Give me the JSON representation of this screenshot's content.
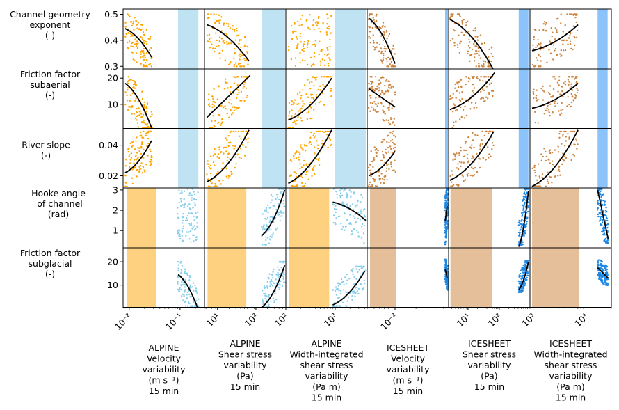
{
  "chart_data": {
    "type": "scatter",
    "layout": "grid",
    "grid": {
      "rows": 5,
      "cols": 6,
      "sharex": "column",
      "sharey": "row"
    },
    "colors": {
      "alpine_points": "#ffa500",
      "alpine_glacial_points": "#87ceeb",
      "icesheet_points": "#cd853f",
      "icesheet_glacial_points": "#1e88e5",
      "alpine_band": "#fdd17f",
      "alpine_band_blue": "#bfe3f2",
      "icesheet_band": "#e4bf99",
      "icesheet_band_blue": "#8cc3fb",
      "fit_line": "#000000"
    },
    "rows": [
      {
        "label": [
          "Channel geometry",
          "exponent",
          "(-)"
        ],
        "ylim": [
          0.29,
          0.52
        ],
        "yticks": [
          0.3,
          0.4,
          0.5
        ],
        "ytick_labels": [
          "0.3",
          "0.4",
          "0.5"
        ]
      },
      {
        "label": [
          "Friction factor",
          "subaerial",
          "(-)"
        ],
        "ylim": [
          0.8,
          23.5
        ],
        "yticks": [
          10,
          20
        ],
        "ytick_labels": [
          "10",
          "20"
        ]
      },
      {
        "label": [
          "River slope",
          "(-)"
        ],
        "ylim": [
          0.012,
          0.051
        ],
        "yticks": [
          0.02,
          0.04
        ],
        "ytick_labels": [
          "0.02",
          "0.04"
        ]
      },
      {
        "label": [
          "Hooke angle",
          " of channel",
          "(rad)"
        ],
        "ylim": [
          0.15,
          3.1
        ],
        "yticks": [
          1,
          2,
          3
        ],
        "ytick_labels": [
          "1",
          "2",
          "3"
        ]
      },
      {
        "label": [
          "Friction factor",
          "subglacial",
          "(-)"
        ],
        "ylim": [
          0.5,
          26
        ],
        "yticks": [
          10,
          20
        ],
        "ytick_labels": [
          "10",
          "20"
        ]
      }
    ],
    "columns": [
      {
        "label": [
          "ALPINE",
          "Velocity",
          "variability",
          "(m s⁻¹)",
          "15 min"
        ],
        "xscale": "log",
        "xlim_log10": [
          -2.12,
          -0.52
        ],
        "xticks_log10": [
          -2,
          -1
        ],
        "xtick_labels": [
          "10⁻²",
          "10⁻¹"
        ],
        "group": "alpine",
        "subaerial_band_log10": [
          -1.04,
          -0.64
        ],
        "glacial_band_log10": [
          -2.05,
          -1.47
        ]
      },
      {
        "label": [
          "ALPINE",
          "Shear stress",
          "variability",
          "(Pa)",
          "15 min"
        ],
        "xscale": "log",
        "xlim_log10": [
          0.66,
          2.78
        ],
        "xticks_log10": [
          1,
          2
        ],
        "xtick_labels": [
          "10¹",
          "10²"
        ],
        "group": "alpine",
        "subaerial_band_log10": [
          2.16,
          2.76
        ],
        "glacial_band_log10": [
          0.74,
          1.75
        ]
      },
      {
        "label": [
          "ALPINE",
          "Width-integrated",
          "shear stress",
          "variability",
          "(Pa m)",
          "15 min"
        ],
        "xscale": "log",
        "xlim_log10": [
          2.0,
          3.65
        ],
        "xticks_log10": [
          2,
          3
        ],
        "xtick_labels": [
          "10²",
          "10³"
        ],
        "group": "alpine",
        "subaerial_band_log10": [
          3.0,
          3.62
        ],
        "glacial_band_log10": [
          2.06,
          2.88
        ]
      },
      {
        "label": [
          "ICESHEET",
          "Velocity",
          "variability",
          "(m s⁻¹)",
          "15 min"
        ],
        "xscale": "log",
        "xlim_log10": [
          -2.4,
          -1.23
        ],
        "xticks_log10": [
          -2
        ],
        "xtick_labels": [
          "10⁻²"
        ],
        "group": "icesheet",
        "subaerial_band_log10": [
          -1.28,
          -1.24
        ],
        "glacial_band_log10": [
          -2.36,
          -1.99
        ]
      },
      {
        "label": [
          "ICESHEET",
          "Shear stress",
          "variability",
          "(Pa)",
          "15 min"
        ],
        "xscale": "log",
        "xlim_log10": [
          0.38,
          2.98
        ],
        "xticks_log10": [
          1,
          2
        ],
        "xtick_labels": [
          "10¹",
          "10²"
        ],
        "group": "icesheet",
        "subaerial_band_log10": [
          2.62,
          2.93
        ],
        "glacial_band_log10": [
          0.44,
          1.76
        ]
      },
      {
        "label": [
          "ICESHEET",
          "Width-integrated",
          "shear stress",
          "variability",
          "(Pa m)",
          "15 min"
        ],
        "xscale": "log",
        "xlim_log10": [
          2.94,
          4.48
        ],
        "xticks_log10": [
          3,
          4
        ],
        "xtick_labels": [
          "10³",
          "10⁴"
        ],
        "group": "icesheet",
        "subaerial_band_log10": [
          4.22,
          4.41
        ],
        "glacial_band_log10": [
          2.98,
          3.87
        ]
      }
    ],
    "panels": [
      {
        "row": 0,
        "col": 0,
        "kind": "subaerial",
        "cloud": {
          "x_log10": [
            -2.08,
            -1.55
          ],
          "y": [
            0.3,
            0.5
          ],
          "n": 110
        },
        "fit": {
          "x_log10": [
            -2.08,
            -1.56
          ],
          "y": [
            0.445,
            0.335
          ],
          "curve": "concave"
        }
      },
      {
        "row": 0,
        "col": 1,
        "kind": "subaerial",
        "cloud": {
          "x_log10": [
            0.72,
            1.8
          ],
          "y": [
            0.3,
            0.5
          ],
          "n": 110
        },
        "fit": {
          "x_log10": [
            0.72,
            1.82
          ],
          "y": [
            0.46,
            0.32
          ],
          "curve": "concave"
        }
      },
      {
        "row": 0,
        "col": 2,
        "kind": "subaerial",
        "cloud": {
          "x_log10": [
            2.05,
            2.93
          ],
          "y": [
            0.3,
            0.5
          ],
          "n": 110
        },
        "fit": null
      },
      {
        "row": 0,
        "col": 3,
        "kind": "subaerial",
        "cloud": {
          "x_log10": [
            -2.38,
            -1.99
          ],
          "y": [
            0.3,
            0.5
          ],
          "n": 110
        },
        "fit": {
          "x_log10": [
            -2.38,
            -2.0
          ],
          "y": [
            0.485,
            0.31
          ],
          "curve": "concave"
        }
      },
      {
        "row": 0,
        "col": 4,
        "kind": "subaerial",
        "cloud": {
          "x_log10": [
            0.42,
            1.8
          ],
          "y": [
            0.3,
            0.5
          ],
          "n": 110
        },
        "fit": {
          "x_log10": [
            0.42,
            1.8
          ],
          "y": [
            0.48,
            0.29
          ],
          "curve": "concave"
        }
      },
      {
        "row": 0,
        "col": 5,
        "kind": "subaerial",
        "cloud": {
          "x_log10": [
            2.98,
            3.85
          ],
          "y": [
            0.3,
            0.5
          ],
          "n": 110
        },
        "fit": {
          "x_log10": [
            2.98,
            3.85
          ],
          "y": [
            0.36,
            0.46
          ],
          "curve": "convex"
        }
      },
      {
        "row": 1,
        "col": 0,
        "kind": "subaerial",
        "cloud": {
          "x_log10": [
            -2.08,
            -1.55
          ],
          "y": [
            1,
            20.5
          ],
          "n": 110
        },
        "fit": {
          "x_log10": [
            -2.08,
            -1.56
          ],
          "y": [
            18,
            1
          ],
          "curve": "concave"
        }
      },
      {
        "row": 1,
        "col": 1,
        "kind": "subaerial",
        "cloud": {
          "x_log10": [
            0.72,
            1.82
          ],
          "y": [
            1,
            20.5
          ],
          "n": 110
        },
        "fit": {
          "x_log10": [
            0.72,
            1.85
          ],
          "y": [
            5,
            21
          ],
          "curve": "linear"
        }
      },
      {
        "row": 1,
        "col": 2,
        "kind": "subaerial",
        "cloud": {
          "x_log10": [
            2.05,
            2.93
          ],
          "y": [
            1,
            20.5
          ],
          "n": 110
        },
        "fit": {
          "x_log10": [
            2.05,
            2.93
          ],
          "y": [
            4,
            20
          ],
          "curve": "convex"
        }
      },
      {
        "row": 1,
        "col": 3,
        "kind": "subaerial",
        "cloud": {
          "x_log10": [
            -2.38,
            -1.99
          ],
          "y": [
            1,
            20.5
          ],
          "n": 110
        },
        "fit": {
          "x_log10": [
            -2.38,
            -2.0
          ],
          "y": [
            16,
            9
          ],
          "curve": "linear"
        }
      },
      {
        "row": 1,
        "col": 4,
        "kind": "subaerial",
        "cloud": {
          "x_log10": [
            0.42,
            1.82
          ],
          "y": [
            1,
            20.5
          ],
          "n": 110
        },
        "fit": {
          "x_log10": [
            0.42,
            1.85
          ],
          "y": [
            8,
            22
          ],
          "curve": "convex"
        }
      },
      {
        "row": 1,
        "col": 5,
        "kind": "subaerial",
        "cloud": {
          "x_log10": [
            2.98,
            3.85
          ],
          "y": [
            1,
            20.5
          ],
          "n": 110
        },
        "fit": {
          "x_log10": [
            2.98,
            3.85
          ],
          "y": [
            8.5,
            18
          ],
          "curve": "convex"
        }
      },
      {
        "row": 2,
        "col": 0,
        "kind": "subaerial",
        "cloud": {
          "x_log10": [
            -2.08,
            -1.55
          ],
          "y": [
            0.013,
            0.049
          ],
          "n": 110
        },
        "fit": {
          "x_log10": [
            -2.08,
            -1.56
          ],
          "y": [
            0.022,
            0.043
          ],
          "curve": "convex"
        }
      },
      {
        "row": 2,
        "col": 1,
        "kind": "subaerial",
        "cloud": {
          "x_log10": [
            0.72,
            1.82
          ],
          "y": [
            0.013,
            0.049
          ],
          "n": 110
        },
        "fit": {
          "x_log10": [
            0.72,
            1.82
          ],
          "y": [
            0.016,
            0.05
          ],
          "curve": "convex"
        }
      },
      {
        "row": 2,
        "col": 2,
        "kind": "subaerial",
        "cloud": {
          "x_log10": [
            2.05,
            2.93
          ],
          "y": [
            0.013,
            0.049
          ],
          "n": 110
        },
        "fit": {
          "x_log10": [
            2.05,
            2.93
          ],
          "y": [
            0.015,
            0.05
          ],
          "curve": "convex"
        }
      },
      {
        "row": 2,
        "col": 3,
        "kind": "subaerial",
        "cloud": {
          "x_log10": [
            -2.38,
            -1.99
          ],
          "y": [
            0.013,
            0.049
          ],
          "n": 110
        },
        "fit": {
          "x_log10": [
            -2.38,
            -2.0
          ],
          "y": [
            0.02,
            0.036
          ],
          "curve": "convex"
        }
      },
      {
        "row": 2,
        "col": 4,
        "kind": "subaerial",
        "cloud": {
          "x_log10": [
            0.42,
            1.82
          ],
          "y": [
            0.013,
            0.049
          ],
          "n": 110
        },
        "fit": {
          "x_log10": [
            0.42,
            1.82
          ],
          "y": [
            0.017,
            0.049
          ],
          "curve": "convex"
        }
      },
      {
        "row": 2,
        "col": 5,
        "kind": "subaerial",
        "cloud": {
          "x_log10": [
            2.98,
            3.85
          ],
          "y": [
            0.013,
            0.049
          ],
          "n": 110
        },
        "fit": {
          "x_log10": [
            2.98,
            3.85
          ],
          "y": [
            0.013,
            0.05
          ],
          "curve": "convex"
        }
      },
      {
        "row": 3,
        "col": 0,
        "kind": "glacial",
        "cloud": {
          "x_log10": [
            -1.05,
            -0.65
          ],
          "y": [
            0.4,
            3.05
          ],
          "n": 110
        },
        "fit": null
      },
      {
        "row": 3,
        "col": 1,
        "kind": "glacial",
        "cloud": {
          "x_log10": [
            2.15,
            2.76
          ],
          "y": [
            0.3,
            3.05
          ],
          "n": 110
        },
        "fit": {
          "x_log10": [
            2.15,
            2.75
          ],
          "y": [
            0.75,
            3.0
          ],
          "curve": "convex"
        }
      },
      {
        "row": 3,
        "col": 2,
        "kind": "glacial",
        "cloud": {
          "x_log10": [
            2.95,
            3.62
          ],
          "y": [
            0.3,
            3.05
          ],
          "n": 110
        },
        "fit": {
          "x_log10": [
            2.95,
            3.62
          ],
          "y": [
            2.4,
            1.5
          ],
          "curve": "concave"
        }
      },
      {
        "row": 3,
        "col": 3,
        "kind": "glacial",
        "cloud": {
          "x_log10": [
            -1.28,
            -1.24
          ],
          "y": [
            0.3,
            3.05
          ],
          "n": 150
        },
        "fit": {
          "x_log10": [
            -1.28,
            -1.25
          ],
          "y": [
            1.45,
            2.2
          ],
          "curve": "linear"
        }
      },
      {
        "row": 3,
        "col": 4,
        "kind": "glacial",
        "cloud": {
          "x_log10": [
            2.62,
            2.93
          ],
          "y": [
            0.3,
            3.05
          ],
          "n": 150
        },
        "fit": {
          "x_log10": [
            2.62,
            2.93
          ],
          "y": [
            0.2,
            2.95
          ],
          "curve": "convex"
        }
      },
      {
        "row": 3,
        "col": 5,
        "kind": "glacial",
        "cloud": {
          "x_log10": [
            4.22,
            4.42
          ],
          "y": [
            0.4,
            3.05
          ],
          "n": 150
        },
        "fit": {
          "x_log10": [
            4.22,
            4.42
          ],
          "y": [
            3.0,
            0.6
          ],
          "curve": "linear"
        }
      },
      {
        "row": 4,
        "col": 0,
        "kind": "glacial",
        "cloud": {
          "x_log10": [
            -1.05,
            -0.63
          ],
          "y": [
            1,
            20
          ],
          "n": 110
        },
        "fit": {
          "x_log10": [
            -1.04,
            -0.66
          ],
          "y": [
            14.5,
            0.5
          ],
          "curve": "concave"
        }
      },
      {
        "row": 4,
        "col": 1,
        "kind": "glacial",
        "cloud": {
          "x_log10": [
            2.15,
            2.76
          ],
          "y": [
            0.6,
            20
          ],
          "n": 110
        },
        "fit": {
          "x_log10": [
            2.15,
            2.75
          ],
          "y": [
            0.5,
            18.5
          ],
          "curve": "convex"
        }
      },
      {
        "row": 4,
        "col": 2,
        "kind": "glacial",
        "cloud": {
          "x_log10": [
            2.95,
            3.62
          ],
          "y": [
            1,
            18
          ],
          "n": 110
        },
        "fit": {
          "x_log10": [
            2.95,
            3.6
          ],
          "y": [
            1.5,
            16
          ],
          "curve": "convex"
        }
      },
      {
        "row": 4,
        "col": 3,
        "kind": "glacial",
        "cloud": {
          "x_log10": [
            -1.28,
            -1.24
          ],
          "y": [
            8,
            21
          ],
          "n": 150
        },
        "fit": {
          "x_log10": [
            -1.28,
            -1.25
          ],
          "y": [
            17,
            13
          ],
          "curve": "linear"
        }
      },
      {
        "row": 4,
        "col": 4,
        "kind": "glacial",
        "cloud": {
          "x_log10": [
            2.62,
            2.93
          ],
          "y": [
            7,
            20.5
          ],
          "n": 150
        },
        "fit": {
          "x_log10": [
            2.62,
            2.93
          ],
          "y": [
            8,
            20
          ],
          "curve": "convex"
        }
      },
      {
        "row": 4,
        "col": 5,
        "kind": "glacial",
        "cloud": {
          "x_log10": [
            4.22,
            4.42
          ],
          "y": [
            10,
            21
          ],
          "n": 150
        },
        "fit": {
          "x_log10": [
            4.22,
            4.42
          ],
          "y": [
            17.5,
            13
          ],
          "curve": "linear"
        }
      }
    ]
  }
}
